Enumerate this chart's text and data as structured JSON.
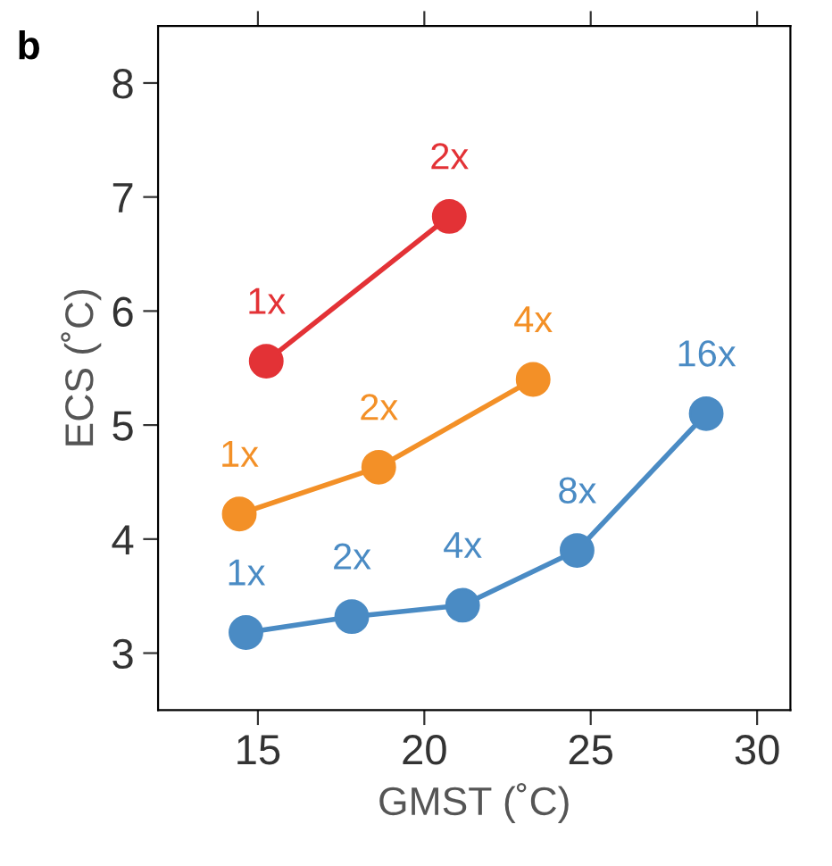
{
  "chart_data": {
    "type": "line",
    "title": "b",
    "xlabel": "GMST (˚C)",
    "ylabel": "ECS (˚C)",
    "xlim": [
      12,
      31
    ],
    "xticks": [
      15,
      20,
      25,
      30
    ],
    "ylim": [
      2.5,
      8.5
    ],
    "yticks": [
      3,
      4,
      5,
      6,
      7,
      8
    ],
    "grid": false,
    "marker": "circle",
    "line_style": "solid",
    "series": [
      {
        "color": "#e33236",
        "x": [
          15.25,
          20.75
        ],
        "values": [
          5.56,
          6.83
        ]
      },
      {
        "color": "#f39027",
        "x": [
          14.44,
          18.63,
          23.27
        ],
        "values": [
          4.22,
          4.63,
          5.4
        ]
      },
      {
        "color": "#4a8bc4",
        "x": [
          14.64,
          17.82,
          21.15,
          24.59,
          28.47
        ],
        "values": [
          3.18,
          3.32,
          3.42,
          3.9,
          5.1
        ]
      }
    ],
    "annotations": [
      {
        "text": "1x",
        "x": 15.25,
        "y": 5.56
      },
      {
        "text": "2x",
        "x": 20.75,
        "y": 6.83
      },
      {
        "text": "1x",
        "x": 14.44,
        "y": 4.22
      },
      {
        "text": "2x",
        "x": 18.63,
        "y": 4.63
      },
      {
        "text": "4x",
        "x": 23.27,
        "y": 5.4
      },
      {
        "text": "1x",
        "x": 14.64,
        "y": 3.18
      },
      {
        "text": "2x",
        "x": 17.82,
        "y": 3.32
      },
      {
        "text": "4x",
        "x": 21.15,
        "y": 3.42
      },
      {
        "text": "8x",
        "x": 24.59,
        "y": 3.9
      },
      {
        "text": "16x",
        "x": 28.47,
        "y": 5.1
      }
    ]
  }
}
